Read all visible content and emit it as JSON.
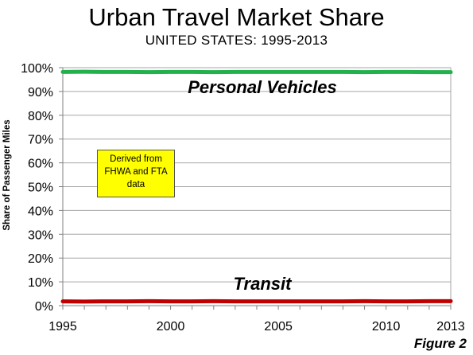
{
  "title": "Urban Travel Market Share",
  "subtitle": "UNITED STATES: 1995-2013",
  "figure_label": "Figure 2",
  "annotation_lines": [
    "Derived from",
    "FHWA and FTA",
    "data"
  ],
  "chart_data": {
    "type": "line",
    "title": "Urban Travel Market Share",
    "subtitle": "UNITED STATES: 1995-2013",
    "xlabel": "",
    "ylabel": "Share of Passenger Miles",
    "ylim": [
      0,
      100
    ],
    "xlim": [
      1995,
      2013
    ],
    "y_ticks": [
      "0%",
      "10%",
      "20%",
      "30%",
      "40%",
      "50%",
      "60%",
      "70%",
      "80%",
      "90%",
      "100%"
    ],
    "x_ticks": [
      1995,
      2000,
      2005,
      2010,
      2013
    ],
    "grid": true,
    "x": [
      1995,
      1996,
      1997,
      1998,
      1999,
      2000,
      2001,
      2002,
      2003,
      2004,
      2005,
      2006,
      2007,
      2008,
      2009,
      2010,
      2011,
      2012,
      2013
    ],
    "series": [
      {
        "name": "Personal Vehicles",
        "color": "#22b14c",
        "values": [
          98.2,
          98.3,
          98.2,
          98.2,
          98.1,
          98.2,
          98.2,
          98.1,
          98.2,
          98.2,
          98.2,
          98.2,
          98.2,
          98.2,
          98.1,
          98.2,
          98.2,
          98.1,
          98.1
        ]
      },
      {
        "name": "Transit",
        "color": "#c00000",
        "values": [
          1.8,
          1.7,
          1.8,
          1.8,
          1.9,
          1.8,
          1.8,
          1.9,
          1.8,
          1.8,
          1.8,
          1.8,
          1.8,
          1.8,
          1.9,
          1.8,
          1.8,
          1.9,
          1.9
        ]
      }
    ]
  }
}
